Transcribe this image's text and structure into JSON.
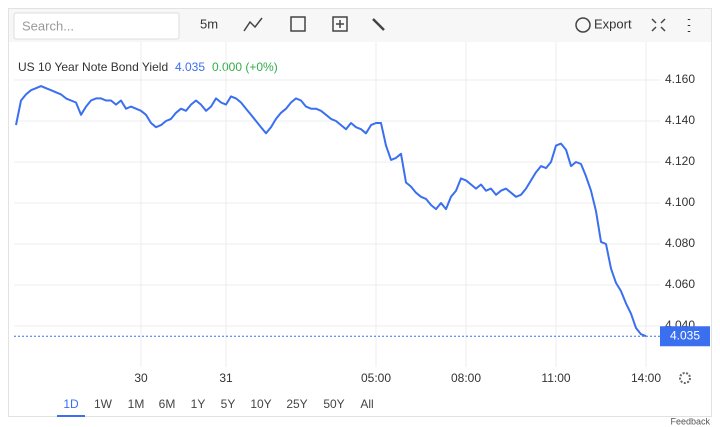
{
  "toolbar": {
    "search_placeholder": "Search...",
    "interval": "5m",
    "export": "Export"
  },
  "chart_data": {
    "type": "line",
    "title": "US 10 Year Note Bond Yield",
    "current_value": 4.035,
    "change": "0.000 (+0%)",
    "color": "#3a6ff0",
    "grid": true,
    "xlim": [
      0,
      128
    ],
    "xticks": [
      {
        "value": 25,
        "label": "30"
      },
      {
        "value": 42,
        "label": "31"
      },
      {
        "value": 72,
        "label": "05:00"
      },
      {
        "value": 90,
        "label": "08:00"
      },
      {
        "value": 108,
        "label": "11:00"
      },
      {
        "value": 126,
        "label": "14:00"
      }
    ],
    "ylim": [
      4.02,
      4.18
    ],
    "yticks": [
      {
        "value": 4.04,
        "label": "4.040"
      },
      {
        "value": 4.06,
        "label": "4.060"
      },
      {
        "value": 4.08,
        "label": "4.080"
      },
      {
        "value": 4.1,
        "label": "4.100"
      },
      {
        "value": 4.12,
        "label": "4.120"
      },
      {
        "value": 4.14,
        "label": "4.140"
      },
      {
        "value": 4.16,
        "label": "4.160"
      }
    ],
    "values": [
      4.138,
      4.15,
      4.153,
      4.155,
      4.156,
      4.157,
      4.156,
      4.155,
      4.154,
      4.153,
      4.151,
      4.15,
      4.149,
      4.143,
      4.147,
      4.15,
      4.151,
      4.151,
      4.15,
      4.15,
      4.148,
      4.15,
      4.146,
      4.147,
      4.146,
      4.145,
      4.143,
      4.139,
      4.137,
      4.138,
      4.14,
      4.141,
      4.144,
      4.146,
      4.145,
      4.148,
      4.15,
      4.148,
      4.145,
      4.147,
      4.151,
      4.149,
      4.148,
      4.152,
      4.151,
      4.149,
      4.146,
      4.143,
      4.14,
      4.137,
      4.134,
      4.137,
      4.141,
      4.144,
      4.146,
      4.149,
      4.151,
      4.15,
      4.147,
      4.146,
      4.146,
      4.145,
      4.143,
      4.141,
      4.14,
      4.138,
      4.136,
      4.139,
      4.137,
      4.136,
      4.134,
      4.138,
      4.139,
      4.139,
      4.128,
      4.121,
      4.122,
      4.124,
      4.11,
      4.108,
      4.105,
      4.103,
      4.102,
      4.099,
      4.097,
      4.1,
      4.097,
      4.103,
      4.106,
      4.112,
      4.111,
      4.109,
      4.107,
      4.109,
      4.106,
      4.107,
      4.104,
      4.106,
      4.107,
      4.105,
      4.103,
      4.104,
      4.107,
      4.111,
      4.115,
      4.118,
      4.117,
      4.12,
      4.128,
      4.129,
      4.126,
      4.118,
      4.12,
      4.119,
      4.113,
      4.106,
      4.096,
      4.081,
      4.08,
      4.068,
      4.061,
      4.057,
      4.051,
      4.046,
      4.039,
      4.036,
      4.035
    ]
  },
  "ranges": [
    "1D",
    "1W",
    "1M",
    "6M",
    "1Y",
    "5Y",
    "10Y",
    "25Y",
    "50Y",
    "All"
  ],
  "feedback": "Feedback"
}
